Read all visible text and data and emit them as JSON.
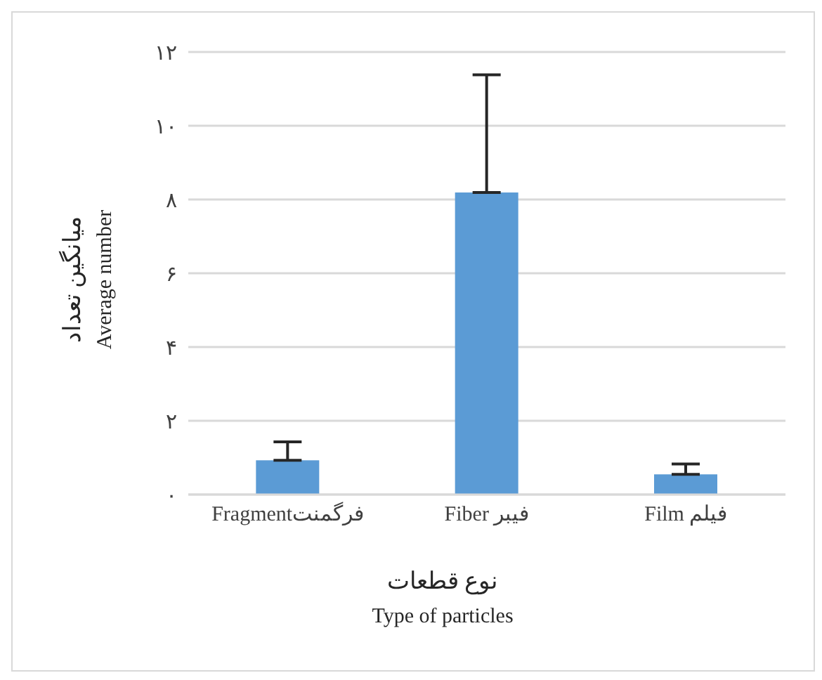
{
  "chart_data": {
    "type": "bar",
    "categories": [
      "Fragmentفرگمنت",
      "Fiber فیبر",
      "Film فیلم"
    ],
    "values": [
      0.93,
      8.19,
      0.55
    ],
    "errors": [
      [
        0.93,
        1.43
      ],
      [
        8.19,
        11.38
      ],
      [
        0.55,
        0.83
      ]
    ],
    "color": "#5b9bd5",
    "xlabel": "نوع قطعات\nType of particles",
    "ylabel": "میانگین تعداد\nAverage number",
    "ylim": [
      0,
      12
    ],
    "yticks": [
      {
        "value": 0,
        "label": "۰"
      },
      {
        "value": 2,
        "label": "۲"
      },
      {
        "value": 4,
        "label": "۴"
      },
      {
        "value": 6,
        "label": "۶"
      },
      {
        "value": 8,
        "label": "۸"
      },
      {
        "value": 10,
        "label": "۱۰"
      },
      {
        "value": 12,
        "label": "۱۲"
      }
    ],
    "grid": "y",
    "legend": false
  }
}
